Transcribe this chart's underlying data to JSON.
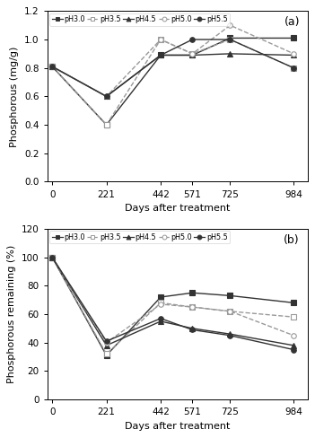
{
  "x": [
    0,
    221,
    442,
    571,
    725,
    984
  ],
  "panel_a": {
    "ylabel": "Phosphorous (mg/g)",
    "ylim": [
      0.0,
      1.2
    ],
    "yticks": [
      0.0,
      0.2,
      0.4,
      0.6,
      0.8,
      1.0,
      1.2
    ],
    "ytick_labels": [
      "0.0",
      "0.2",
      "0.4",
      "0.6",
      "0.8",
      "1.0",
      "1.2"
    ],
    "label": "(a)",
    "series": {
      "pH3.0": {
        "y": [
          0.81,
          0.4,
          0.89,
          0.89,
          1.01,
          1.01
        ],
        "marker": "s",
        "linestyle": "-",
        "color": "#333333",
        "mfc": "#333333"
      },
      "pH3.5": {
        "y": [
          0.81,
          0.4,
          1.0,
          0.9,
          1.0,
          0.8
        ],
        "marker": "s",
        "linestyle": "--",
        "color": "#999999",
        "mfc": "white"
      },
      "pH4.5": {
        "y": [
          0.81,
          0.6,
          0.89,
          0.89,
          0.9,
          0.89
        ],
        "marker": "^",
        "linestyle": "-",
        "color": "#333333",
        "mfc": "#333333"
      },
      "pH5.0": {
        "y": [
          0.81,
          0.6,
          1.0,
          0.9,
          1.1,
          0.9
        ],
        "marker": "o",
        "linestyle": "--",
        "color": "#999999",
        "mfc": "white"
      },
      "pH5.5": {
        "y": [
          0.81,
          0.6,
          0.89,
          1.0,
          1.0,
          0.8
        ],
        "marker": "o",
        "linestyle": "-",
        "color": "#333333",
        "mfc": "#333333"
      }
    }
  },
  "panel_b": {
    "ylabel": "Phosphorous remaining (%)",
    "ylim": [
      0,
      120
    ],
    "yticks": [
      0,
      20,
      40,
      60,
      80,
      100,
      120
    ],
    "ytick_labels": [
      "0",
      "20",
      "40",
      "60",
      "80",
      "100",
      "120"
    ],
    "label": "(b)",
    "series": {
      "pH3.0": {
        "y": [
          100,
          31,
          72,
          75,
          73,
          68
        ],
        "marker": "s",
        "linestyle": "-",
        "color": "#333333",
        "mfc": "#333333"
      },
      "pH3.5": {
        "y": [
          100,
          32,
          68,
          65,
          62,
          58
        ],
        "marker": "s",
        "linestyle": "--",
        "color": "#999999",
        "mfc": "white"
      },
      "pH4.5": {
        "y": [
          100,
          38,
          55,
          50,
          46,
          38
        ],
        "marker": "^",
        "linestyle": "-",
        "color": "#333333",
        "mfc": "#333333"
      },
      "pH5.0": {
        "y": [
          100,
          40,
          67,
          65,
          62,
          45
        ],
        "marker": "o",
        "linestyle": "--",
        "color": "#999999",
        "mfc": "white"
      },
      "pH5.5": {
        "y": [
          100,
          41,
          57,
          49,
          45,
          35
        ],
        "marker": "o",
        "linestyle": "-",
        "color": "#333333",
        "mfc": "#333333"
      }
    }
  },
  "xlabel": "Days after treatment",
  "xticks": [
    0,
    221,
    442,
    571,
    725,
    984
  ],
  "background_color": "#ffffff",
  "markersize": 4,
  "linewidth": 1.0
}
